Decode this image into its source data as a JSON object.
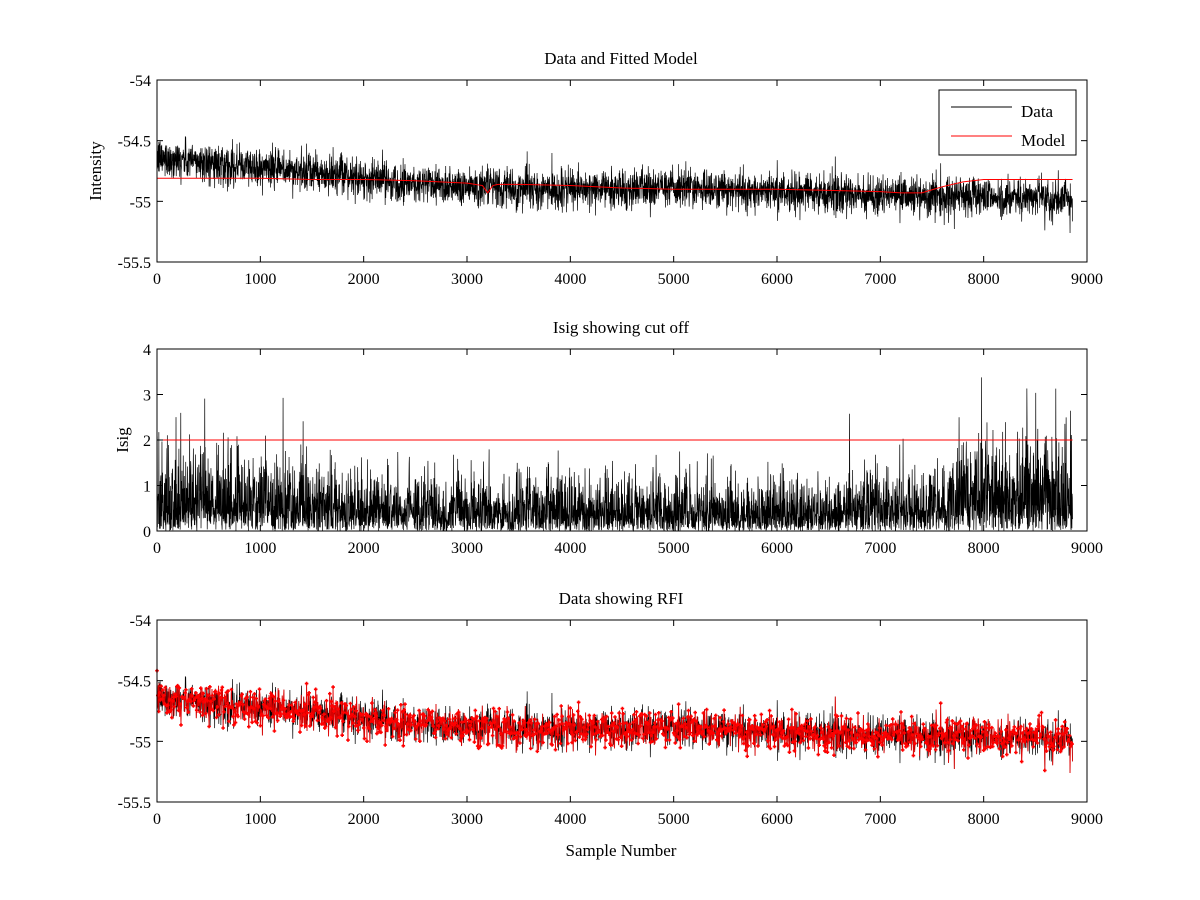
{
  "chart_data": [
    {
      "type": "line",
      "title": "Data and Fitted Model",
      "xlabel": "",
      "ylabel": "Intensity",
      "xlim": [
        0,
        9000
      ],
      "ylim": [
        -55.5,
        -54
      ],
      "xticks": [
        0,
        1000,
        2000,
        3000,
        4000,
        5000,
        6000,
        7000,
        8000,
        9000
      ],
      "yticks": [
        -55.5,
        -55,
        -54.5,
        -54
      ],
      "ytick_labels": [
        "-55.5",
        "-55",
        "-54.5",
        "-54"
      ],
      "n_samples": 8860,
      "legend": {
        "position": "top-right",
        "entries": [
          "Data",
          "Model"
        ]
      },
      "series": [
        {
          "name": "Data",
          "kind": "noise",
          "color": "#000000",
          "trend_x": [
            0,
            500,
            1000,
            1500,
            2000,
            2500,
            3000,
            3500,
            4000,
            4500,
            5000,
            5500,
            6000,
            6500,
            7000,
            7500,
            8000,
            8500,
            8860
          ],
          "trend_y": [
            -54.64,
            -54.68,
            -54.72,
            -54.77,
            -54.81,
            -54.85,
            -54.87,
            -54.9,
            -54.91,
            -54.9,
            -54.89,
            -54.9,
            -54.92,
            -54.94,
            -54.95,
            -54.95,
            -54.96,
            -54.97,
            -54.98
          ],
          "spread": 0.08
        },
        {
          "name": "Model",
          "kind": "line",
          "color": "#ff0000",
          "x": [
            0,
            500,
            1000,
            1500,
            2000,
            2500,
            3000,
            3150,
            3200,
            3250,
            3300,
            3500,
            4000,
            4500,
            5000,
            5500,
            6000,
            6500,
            7000,
            7200,
            7400,
            7600,
            7800,
            8000,
            8500,
            8860
          ],
          "y": [
            -54.81,
            -54.81,
            -54.81,
            -54.82,
            -54.82,
            -54.83,
            -54.85,
            -54.87,
            -54.93,
            -54.87,
            -54.86,
            -54.86,
            -54.87,
            -54.89,
            -54.9,
            -54.9,
            -54.9,
            -54.91,
            -54.92,
            -54.93,
            -54.93,
            -54.88,
            -54.84,
            -54.82,
            -54.82,
            -54.82
          ]
        }
      ]
    },
    {
      "type": "line",
      "title": "Isig showing cut off",
      "xlabel": "",
      "ylabel": "Isig",
      "xlim": [
        0,
        9000
      ],
      "ylim": [
        0,
        4
      ],
      "xticks": [
        0,
        1000,
        2000,
        3000,
        4000,
        5000,
        6000,
        7000,
        8000,
        9000
      ],
      "yticks": [
        0,
        1,
        2,
        3,
        4
      ],
      "ytick_labels": [
        "0",
        "1",
        "2",
        "3",
        "4"
      ],
      "n_samples": 8860,
      "series": [
        {
          "name": "Isig",
          "kind": "noise-abs",
          "color": "#000000",
          "trend_x": [
            0,
            1000,
            1500,
            2000,
            3000,
            4000,
            5000,
            6000,
            7000,
            7500,
            7700,
            8000,
            8500,
            8860
          ],
          "trend_scale": [
            1.1,
            1.0,
            0.8,
            0.7,
            0.7,
            0.7,
            0.7,
            0.65,
            0.7,
            0.75,
            1.0,
            1.2,
            1.25,
            1.2
          ],
          "peak": 3.4
        },
        {
          "name": "cut off",
          "kind": "line",
          "color": "#ff0000",
          "x": [
            0,
            8860
          ],
          "y": [
            2,
            2
          ]
        }
      ]
    },
    {
      "type": "line",
      "title": "Data showing RFI",
      "xlabel": "Sample Number",
      "ylabel": "",
      "xlim": [
        0,
        9000
      ],
      "ylim": [
        -55.5,
        -54
      ],
      "xticks": [
        0,
        1000,
        2000,
        3000,
        4000,
        5000,
        6000,
        7000,
        8000,
        9000
      ],
      "yticks": [
        -55.5,
        -55,
        -54.5,
        -54
      ],
      "ytick_labels": [
        "-55.5",
        "-55",
        "-54.5",
        "-54"
      ],
      "n_samples": 8860,
      "series": [
        {
          "name": "Data",
          "kind": "noise",
          "color": "#000000",
          "trend_x": [
            0,
            500,
            1000,
            1500,
            2000,
            2500,
            3000,
            3500,
            4000,
            4500,
            5000,
            5500,
            6000,
            6500,
            7000,
            7500,
            8000,
            8500,
            8860
          ],
          "trend_y": [
            -54.64,
            -54.68,
            -54.72,
            -54.77,
            -54.81,
            -54.85,
            -54.87,
            -54.9,
            -54.91,
            -54.9,
            -54.89,
            -54.9,
            -54.92,
            -54.94,
            -54.95,
            -54.95,
            -54.96,
            -54.97,
            -54.98
          ],
          "spread": 0.08
        },
        {
          "name": "RFI",
          "kind": "markers",
          "color": "#ff0000",
          "marker": "dot"
        }
      ]
    }
  ]
}
